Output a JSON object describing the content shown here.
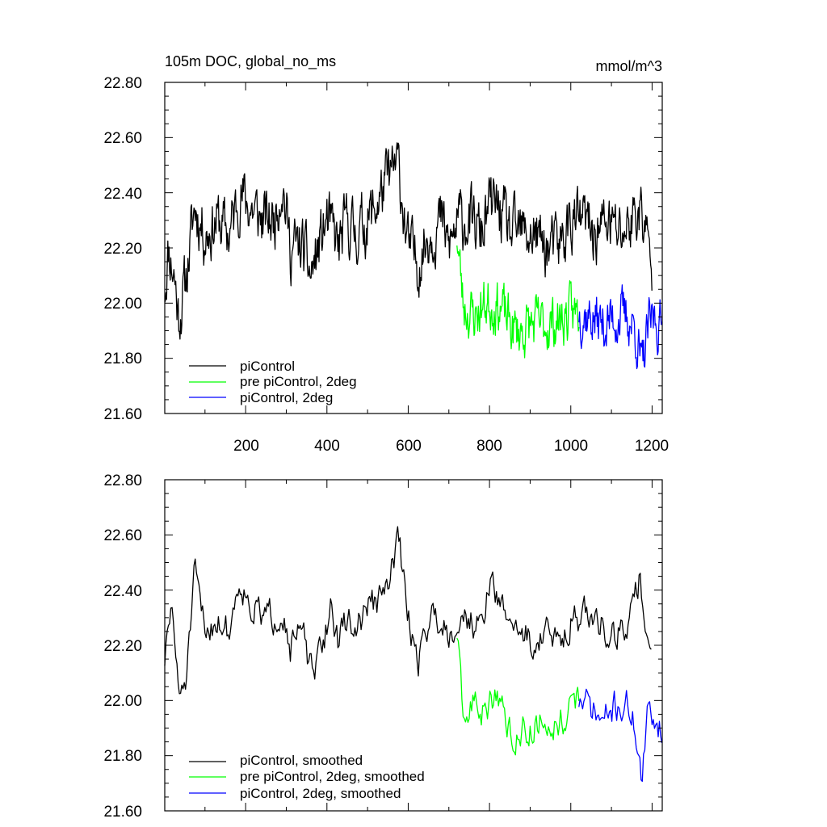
{
  "chart_data": [
    {
      "type": "line",
      "title": "105m DOC, global_no_ms",
      "units": "mmol/m^3",
      "xlim": [
        1,
        1225
      ],
      "ylim": [
        21.6,
        22.8
      ],
      "yticks": [
        "21.60",
        "21.80",
        "22.00",
        "22.20",
        "22.40",
        "22.60",
        "22.80"
      ],
      "xticks": [
        "200",
        "400",
        "600",
        "800",
        "1000",
        "1200"
      ],
      "legend_position": "lower-left",
      "series": [
        {
          "name": "piControl",
          "color": "#000000",
          "x_range": [
            1,
            1200
          ],
          "anchors": [
            [
              1,
              22.05
            ],
            [
              10,
              22.2
            ],
            [
              25,
              22.1
            ],
            [
              35,
              21.95
            ],
            [
              50,
              22.05
            ],
            [
              75,
              22.35
            ],
            [
              100,
              22.25
            ],
            [
              130,
              22.3
            ],
            [
              160,
              22.25
            ],
            [
              185,
              22.4
            ],
            [
              210,
              22.35
            ],
            [
              240,
              22.3
            ],
            [
              270,
              22.3
            ],
            [
              290,
              22.45
            ],
            [
              310,
              22.2
            ],
            [
              340,
              22.2
            ],
            [
              360,
              22.1
            ],
            [
              380,
              22.2
            ],
            [
              400,
              22.3
            ],
            [
              430,
              22.2
            ],
            [
              450,
              22.3
            ],
            [
              470,
              22.25
            ],
            [
              500,
              22.3
            ],
            [
              520,
              22.35
            ],
            [
              550,
              22.45
            ],
            [
              575,
              22.5
            ],
            [
              600,
              22.2
            ],
            [
              625,
              22.15
            ],
            [
              650,
              22.25
            ],
            [
              680,
              22.3
            ],
            [
              700,
              22.2
            ],
            [
              725,
              22.3
            ],
            [
              750,
              22.3
            ],
            [
              780,
              22.25
            ],
            [
              800,
              22.35
            ],
            [
              820,
              22.35
            ],
            [
              850,
              22.25
            ],
            [
              880,
              22.25
            ],
            [
              910,
              22.25
            ],
            [
              940,
              22.2
            ],
            [
              970,
              22.2
            ],
            [
              1000,
              22.3
            ],
            [
              1030,
              22.3
            ],
            [
              1060,
              22.25
            ],
            [
              1090,
              22.3
            ],
            [
              1120,
              22.25
            ],
            [
              1150,
              22.3
            ],
            [
              1170,
              22.35
            ],
            [
              1185,
              22.25
            ],
            [
              1200,
              22.1
            ]
          ],
          "amplitude": 0.09,
          "seed": 11
        },
        {
          "name": "pre piControl, 2deg",
          "color": "#00ff00",
          "x_range": [
            720,
            1020
          ],
          "anchors": [
            [
              720,
              22.25
            ],
            [
              735,
              22.0
            ],
            [
              760,
              21.95
            ],
            [
              790,
              22.0
            ],
            [
              820,
              22.0
            ],
            [
              840,
              21.95
            ],
            [
              860,
              21.9
            ],
            [
              880,
              21.9
            ],
            [
              900,
              21.92
            ],
            [
              930,
              21.92
            ],
            [
              960,
              21.93
            ],
            [
              990,
              21.95
            ],
            [
              1020,
              21.97
            ]
          ],
          "amplitude": 0.08,
          "seed": 23
        },
        {
          "name": "piControl, 2deg",
          "color": "#0000ff",
          "x_range": [
            1020,
            1225
          ],
          "anchors": [
            [
              1020,
              21.97
            ],
            [
              1050,
              21.95
            ],
            [
              1080,
              21.92
            ],
            [
              1110,
              21.95
            ],
            [
              1140,
              21.95
            ],
            [
              1160,
              21.9
            ],
            [
              1175,
              21.75
            ],
            [
              1190,
              21.9
            ],
            [
              1205,
              21.95
            ],
            [
              1225,
              21.9
            ]
          ],
          "amplitude": 0.08,
          "seed": 37
        }
      ]
    },
    {
      "type": "line",
      "xlim": [
        1,
        1225
      ],
      "ylim": [
        21.6,
        22.8
      ],
      "yticks": [
        "21.60",
        "21.80",
        "22.00",
        "22.20",
        "22.40",
        "22.60",
        "22.80"
      ],
      "legend_position": "lower-left",
      "series": [
        {
          "name": "piControl, smoothed",
          "color": "#000000",
          "x_range": [
            1,
            1200
          ],
          "anchors": [
            [
              1,
              22.15
            ],
            [
              20,
              22.35
            ],
            [
              35,
              22.0
            ],
            [
              55,
              22.1
            ],
            [
              75,
              22.45
            ],
            [
              100,
              22.25
            ],
            [
              130,
              22.3
            ],
            [
              160,
              22.25
            ],
            [
              185,
              22.45
            ],
            [
              210,
              22.35
            ],
            [
              240,
              22.3
            ],
            [
              270,
              22.3
            ],
            [
              290,
              22.35
            ],
            [
              310,
              22.2
            ],
            [
              340,
              22.25
            ],
            [
              365,
              22.07
            ],
            [
              390,
              22.2
            ],
            [
              410,
              22.35
            ],
            [
              430,
              22.2
            ],
            [
              450,
              22.3
            ],
            [
              470,
              22.25
            ],
            [
              500,
              22.35
            ],
            [
              520,
              22.35
            ],
            [
              550,
              22.4
            ],
            [
              575,
              22.6
            ],
            [
              600,
              22.3
            ],
            [
              625,
              22.15
            ],
            [
              650,
              22.3
            ],
            [
              680,
              22.3
            ],
            [
              700,
              22.25
            ],
            [
              725,
              22.3
            ],
            [
              750,
              22.3
            ],
            [
              780,
              22.25
            ],
            [
              800,
              22.45
            ],
            [
              820,
              22.35
            ],
            [
              850,
              22.3
            ],
            [
              880,
              22.25
            ],
            [
              910,
              22.2
            ],
            [
              940,
              22.25
            ],
            [
              970,
              22.2
            ],
            [
              1000,
              22.3
            ],
            [
              1030,
              22.3
            ],
            [
              1060,
              22.3
            ],
            [
              1090,
              22.25
            ],
            [
              1120,
              22.25
            ],
            [
              1150,
              22.3
            ],
            [
              1170,
              22.45
            ],
            [
              1185,
              22.25
            ],
            [
              1200,
              22.2
            ]
          ],
          "amplitude": 0.05,
          "seed": 51
        },
        {
          "name": "pre piControl, 2deg, smoothed",
          "color": "#00ff00",
          "x_range": [
            720,
            1020
          ],
          "anchors": [
            [
              720,
              22.25
            ],
            [
              735,
              21.9
            ],
            [
              760,
              22.0
            ],
            [
              790,
              21.95
            ],
            [
              820,
              22.05
            ],
            [
              840,
              21.9
            ],
            [
              860,
              21.88
            ],
            [
              880,
              21.9
            ],
            [
              900,
              21.9
            ],
            [
              930,
              21.93
            ],
            [
              960,
              21.92
            ],
            [
              990,
              21.95
            ],
            [
              1020,
              22.0
            ]
          ],
          "amplitude": 0.05,
          "seed": 63
        },
        {
          "name": "piControl, 2deg, smoothed",
          "color": "#0000ff",
          "x_range": [
            1020,
            1225
          ],
          "anchors": [
            [
              1020,
              22.0
            ],
            [
              1050,
              21.97
            ],
            [
              1080,
              21.92
            ],
            [
              1110,
              21.98
            ],
            [
              1140,
              21.98
            ],
            [
              1160,
              21.9
            ],
            [
              1175,
              21.7
            ],
            [
              1190,
              21.95
            ],
            [
              1205,
              21.95
            ],
            [
              1225,
              21.9
            ]
          ],
          "amplitude": 0.05,
          "seed": 71
        }
      ]
    }
  ]
}
